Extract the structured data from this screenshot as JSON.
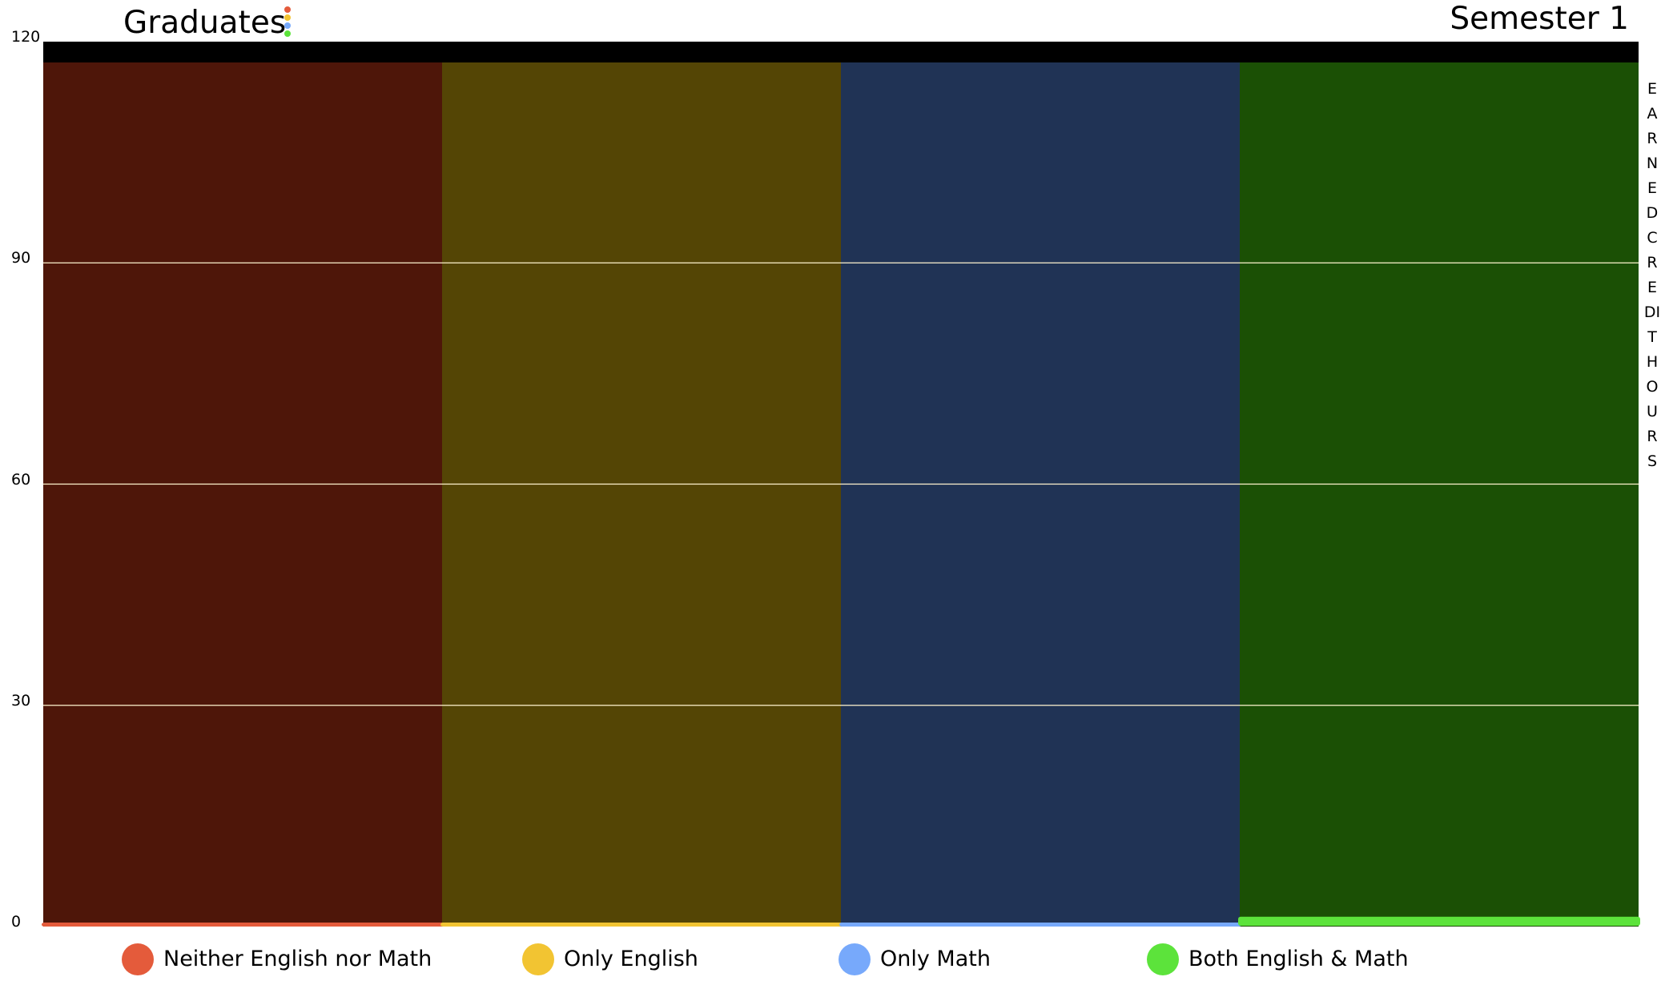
{
  "chart_data": {
    "type": "bar",
    "title": "Graduates",
    "subtitle": "Semester 1",
    "ylabel": "EARNED CREDIT HOURS",
    "xlabel": "",
    "ylim": [
      0,
      120
    ],
    "yticks": [
      0,
      30,
      60,
      90,
      120
    ],
    "grid": true,
    "legend_placement": "bottom",
    "categories": [
      "Neither English nor Math",
      "Only English",
      "Only Math",
      "Both English & Math"
    ],
    "values": [
      0,
      0,
      0,
      1
    ],
    "series_colors": [
      "#e45b3b",
      "#f2c432",
      "#77a9fb",
      "#5ce33b"
    ],
    "background_colors": [
      "#4e1609",
      "#544505",
      "#203355",
      "#1b5005"
    ],
    "grid_color": "#fff4cf",
    "cap_band_color": "#000000",
    "legend": [
      {
        "label": "Neither English nor Math",
        "color": "#e45b3b"
      },
      {
        "label": "Only English",
        "color": "#f2c432"
      },
      {
        "label": "Only Math",
        "color": "#77a9fb"
      },
      {
        "label": "Both English & Math",
        "color": "#5ce33b"
      }
    ]
  }
}
